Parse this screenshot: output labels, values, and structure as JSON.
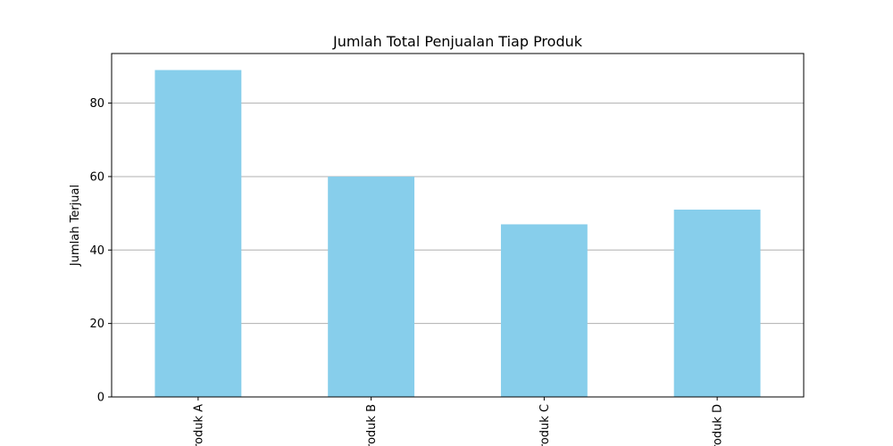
{
  "chart_data": {
    "type": "bar",
    "title": "Jumlah Total Penjualan Tiap Produk",
    "xlabel": "",
    "ylabel": "Jumlah Terjual",
    "categories": [
      "Produk A",
      "Produk B",
      "Produk C",
      "Produk D"
    ],
    "values": [
      89,
      60,
      47,
      51
    ],
    "ylim": [
      0,
      93.5
    ],
    "yticks": [
      0,
      20,
      40,
      60,
      80
    ],
    "grid": "y",
    "bar_color": "#87CEEB",
    "xtick_rotation": 90
  }
}
